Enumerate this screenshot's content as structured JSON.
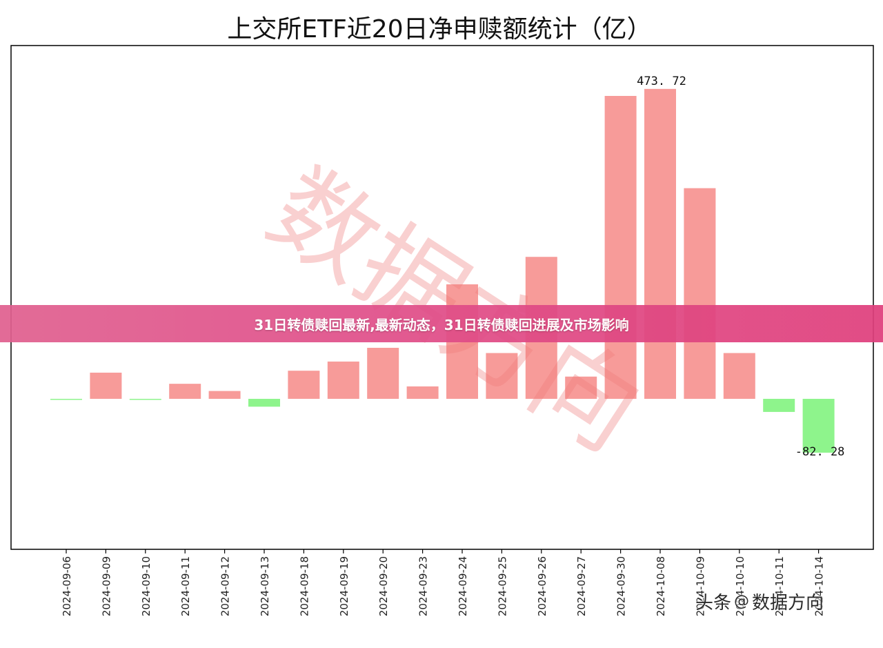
{
  "chart_data": {
    "type": "bar",
    "title": "上交所ETF近20日净申赎额统计（亿）",
    "categories": [
      "2024-09-06",
      "2024-09-09",
      "2024-09-10",
      "2024-09-11",
      "2024-09-12",
      "2024-09-13",
      "2024-09-18",
      "2024-09-19",
      "2024-09-20",
      "2024-09-23",
      "2024-09-24",
      "2024-09-25",
      "2024-09-26",
      "2024-09-27",
      "2024-09-30",
      "2024-10-08",
      "2024-10-09",
      "2024-10-10",
      "2024-10-11",
      "2024-10-14"
    ],
    "values": [
      -1.5,
      40,
      -1.5,
      23,
      12,
      -12,
      43,
      57,
      78,
      19,
      175,
      70,
      217,
      34,
      463,
      473.72,
      322,
      70,
      -20,
      -82.28
    ],
    "data_labels": {
      "15": "473. 72",
      "19": "-82. 28"
    },
    "ylim": [
      -230,
      540
    ],
    "positive_color": "#f79b99",
    "negative_color": "#8ef48c",
    "grid": false
  },
  "watermark": {
    "text": "数据方向"
  },
  "banner": {
    "text": "31日转债赎回最新,最新动态，31日转债赎回进展及市场影响"
  },
  "source": {
    "prefix": "头条",
    "at": "@",
    "name": "数据方向"
  }
}
